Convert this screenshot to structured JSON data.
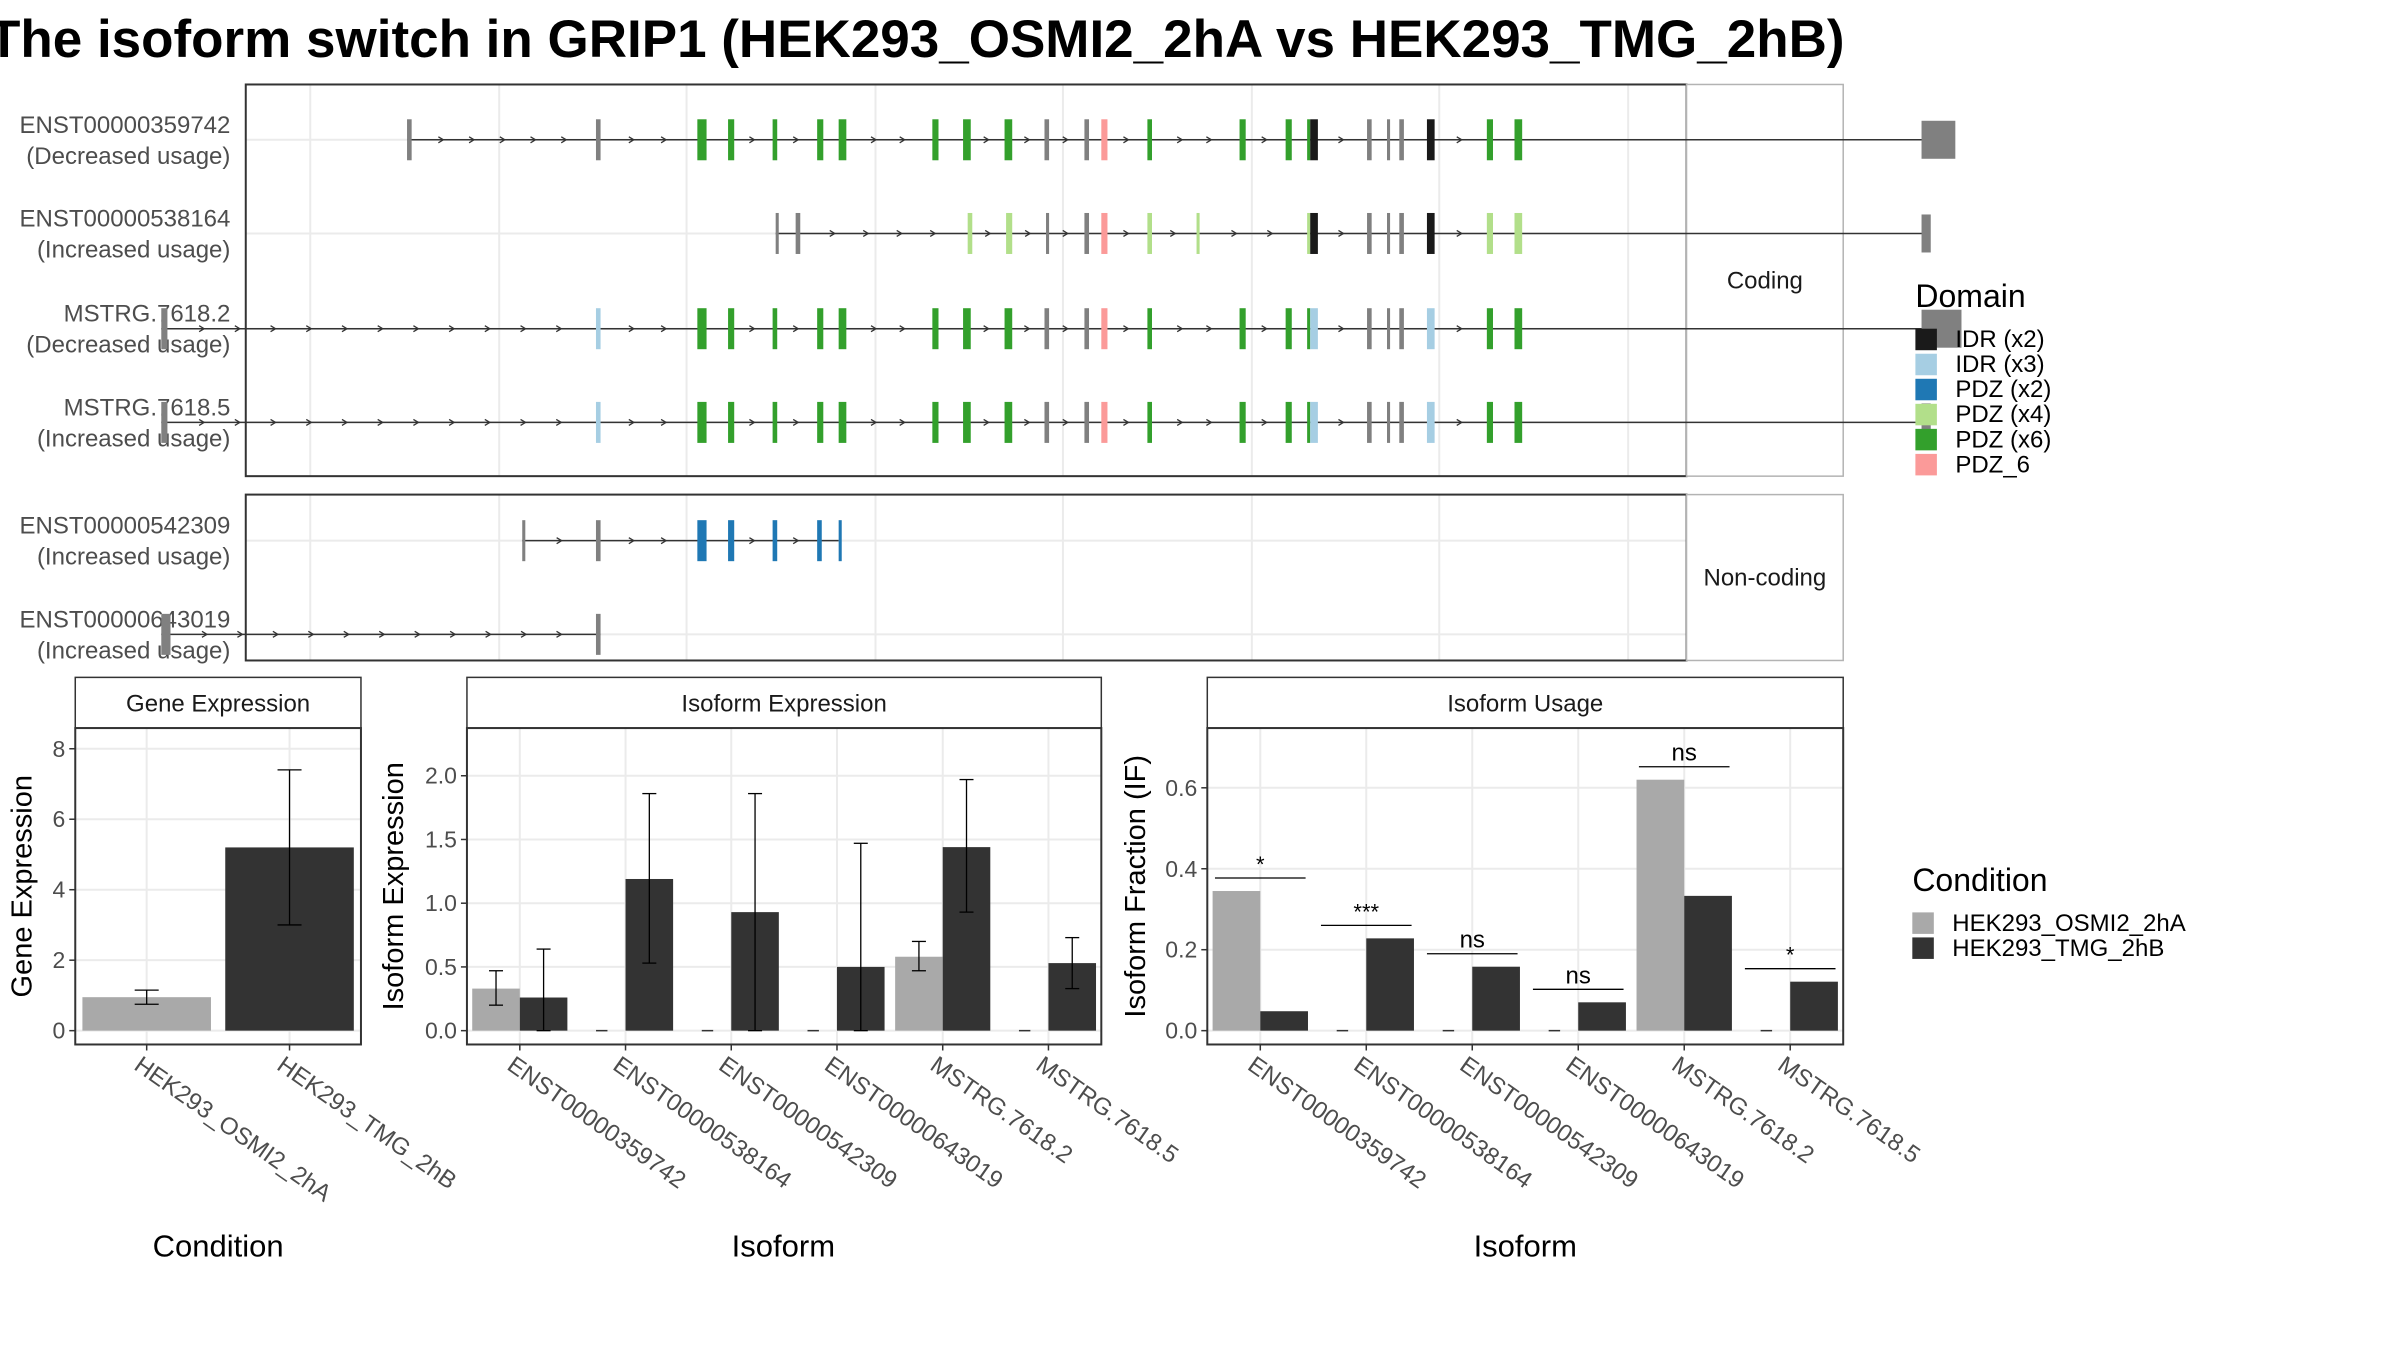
{
  "title": "The isoform switch in GRIP1 (HEK293_OSMI2_2hA vs HEK293_TMG_2hB)",
  "transcript_panel": {
    "groups": [
      {
        "label": "Coding",
        "transcripts": [
          {
            "id": "ENST00000359742",
            "note": "(Decreased usage)",
            "start": 265,
            "end": 1253,
            "utr3_end": 1273,
            "exons": [
              [
                265,
                268,
                "grey"
              ],
              [
                388,
                391,
                "grey"
              ],
              [
                454,
                460,
                "PDZ (x6)"
              ],
              [
                474,
                478,
                "PDZ (x6)"
              ],
              [
                503,
                506,
                "PDZ (x6)"
              ],
              [
                532,
                536,
                "PDZ (x6)"
              ],
              [
                546,
                551,
                "PDZ (x6)"
              ],
              [
                607,
                611,
                "PDZ (x6)"
              ],
              [
                627,
                632,
                "PDZ (x6)"
              ],
              [
                654,
                659,
                "PDZ (x6)"
              ],
              [
                680,
                683,
                "grey"
              ],
              [
                706,
                709,
                "grey"
              ],
              [
                717,
                721,
                "PDZ_6"
              ],
              [
                747,
                750,
                "PDZ (x6)"
              ],
              [
                807,
                811,
                "PDZ (x6)"
              ],
              [
                837,
                841,
                "PDZ (x6)"
              ],
              [
                851,
                853,
                "PDZ (x6)"
              ],
              [
                853,
                858,
                "IDR (x2)"
              ],
              [
                890,
                893,
                "grey"
              ],
              [
                903,
                905,
                "grey"
              ],
              [
                911,
                914,
                "grey"
              ],
              [
                929,
                934,
                "IDR (x2)"
              ],
              [
                968,
                972,
                "PDZ (x6)"
              ],
              [
                986,
                991,
                "PDZ (x6)"
              ]
            ]
          },
          {
            "id": "ENST00000538164",
            "note": "(Increased usage)",
            "start": 505,
            "end": 1253,
            "utr3_end": 1257,
            "exons": [
              [
                505,
                507,
                "grey"
              ],
              [
                518,
                521,
                "grey"
              ],
              [
                630,
                633,
                "PDZ (x4)"
              ],
              [
                655,
                659,
                "PDZ (x4)"
              ],
              [
                681,
                683,
                "grey"
              ],
              [
                706,
                709,
                "grey"
              ],
              [
                717,
                721,
                "PDZ_6"
              ],
              [
                747,
                750,
                "PDZ (x4)"
              ],
              [
                779,
                781,
                "PDZ (x4)"
              ],
              [
                851,
                853,
                "PDZ (x4)"
              ],
              [
                853,
                858,
                "IDR (x2)"
              ],
              [
                890,
                893,
                "grey"
              ],
              [
                903,
                905,
                "grey"
              ],
              [
                911,
                914,
                "grey"
              ],
              [
                929,
                934,
                "IDR (x2)"
              ],
              [
                968,
                972,
                "PDZ (x4)"
              ],
              [
                986,
                991,
                "PDZ (x4)"
              ]
            ]
          },
          {
            "id": "MSTRG.7618.2",
            "note": "(Decreased usage)",
            "start": 105,
            "end": 1253,
            "utr3_end": 1277,
            "exons": [
              [
                105,
                109,
                "grey"
              ],
              [
                388,
                391,
                "IDR (x3)"
              ],
              [
                454,
                460,
                "PDZ (x6)"
              ],
              [
                474,
                478,
                "PDZ (x6)"
              ],
              [
                503,
                506,
                "PDZ (x6)"
              ],
              [
                532,
                536,
                "PDZ (x6)"
              ],
              [
                546,
                551,
                "PDZ (x6)"
              ],
              [
                607,
                611,
                "PDZ (x6)"
              ],
              [
                627,
                632,
                "PDZ (x6)"
              ],
              [
                654,
                659,
                "PDZ (x6)"
              ],
              [
                680,
                683,
                "grey"
              ],
              [
                706,
                709,
                "grey"
              ],
              [
                717,
                721,
                "PDZ_6"
              ],
              [
                747,
                750,
                "PDZ (x6)"
              ],
              [
                807,
                811,
                "PDZ (x6)"
              ],
              [
                837,
                841,
                "PDZ (x6)"
              ],
              [
                851,
                853,
                "PDZ (x6)"
              ],
              [
                853,
                858,
                "IDR (x3)"
              ],
              [
                890,
                893,
                "grey"
              ],
              [
                903,
                905,
                "grey"
              ],
              [
                911,
                914,
                "grey"
              ],
              [
                929,
                934,
                "IDR (x3)"
              ],
              [
                968,
                972,
                "PDZ (x6)"
              ],
              [
                986,
                991,
                "PDZ (x6)"
              ]
            ]
          },
          {
            "id": "MSTRG.7618.5",
            "note": "(Increased usage)",
            "start": 105,
            "end": 1253,
            "utr3_end": 1257,
            "exons": [
              [
                105,
                109,
                "grey"
              ],
              [
                388,
                391,
                "IDR (x3)"
              ],
              [
                454,
                460,
                "PDZ (x6)"
              ],
              [
                474,
                478,
                "PDZ (x6)"
              ],
              [
                503,
                506,
                "PDZ (x6)"
              ],
              [
                532,
                536,
                "PDZ (x6)"
              ],
              [
                546,
                551,
                "PDZ (x6)"
              ],
              [
                607,
                611,
                "PDZ (x6)"
              ],
              [
                627,
                632,
                "PDZ (x6)"
              ],
              [
                654,
                659,
                "PDZ (x6)"
              ],
              [
                680,
                683,
                "grey"
              ],
              [
                706,
                709,
                "grey"
              ],
              [
                717,
                721,
                "PDZ_6"
              ],
              [
                747,
                750,
                "PDZ (x6)"
              ],
              [
                807,
                811,
                "PDZ (x6)"
              ],
              [
                837,
                841,
                "PDZ (x6)"
              ],
              [
                851,
                853,
                "PDZ (x6)"
              ],
              [
                853,
                858,
                "IDR (x3)"
              ],
              [
                890,
                893,
                "grey"
              ],
              [
                903,
                905,
                "grey"
              ],
              [
                911,
                914,
                "grey"
              ],
              [
                929,
                934,
                "IDR (x3)"
              ],
              [
                968,
                972,
                "PDZ (x6)"
              ],
              [
                986,
                991,
                "PDZ (x6)"
              ]
            ]
          }
        ]
      },
      {
        "label": "Non-coding",
        "transcripts": [
          {
            "id": "ENST00000542309",
            "note": "(Increased usage)",
            "start": 340,
            "end": 546,
            "utr3_end": null,
            "exons": [
              [
                340,
                342,
                "grey"
              ],
              [
                388,
                391,
                "grey"
              ],
              [
                454,
                460,
                "PDZ (x2)"
              ],
              [
                474,
                478,
                "PDZ (x2)"
              ],
              [
                503,
                506,
                "PDZ (x2)"
              ],
              [
                532,
                535,
                "PDZ (x2)"
              ],
              [
                546,
                548,
                "PDZ (x2)"
              ]
            ]
          },
          {
            "id": "ENST00000643019",
            "note": "(Increased usage)",
            "start": 105,
            "end": 391,
            "utr3_end": null,
            "exons": [
              [
                105,
                111,
                "grey"
              ],
              [
                388,
                391,
                "grey"
              ]
            ]
          }
        ]
      }
    ]
  },
  "domain_legend": {
    "title": "Domain",
    "items": [
      {
        "label": "IDR (x2)",
        "color": "#1a1a1a"
      },
      {
        "label": "IDR (x3)",
        "color": "#a6cee3"
      },
      {
        "label": "PDZ (x2)",
        "color": "#1f78b4"
      },
      {
        "label": "PDZ (x4)",
        "color": "#b2df8a"
      },
      {
        "label": "PDZ (x6)",
        "color": "#33a02c"
      },
      {
        "label": "PDZ_6",
        "color": "#fb9a99"
      }
    ],
    "grey_color": "#808080"
  },
  "condition_legend": {
    "title": "Condition",
    "items": [
      {
        "label": "HEK293_OSMI2_2hA",
        "color": "#a9a9a9"
      },
      {
        "label": "HEK293_TMG_2hB",
        "color": "#333333"
      }
    ]
  },
  "chart_data": [
    {
      "type": "bar",
      "panel_title": "Gene Expression",
      "xlabel": "Condition",
      "ylabel": "Gene Expression",
      "ylim": [
        0,
        8.5
      ],
      "yticks": [
        0,
        2,
        4,
        6,
        8
      ],
      "categories": [
        "HEK293_OSMI2_2hA",
        "HEK293_TMG_2hB"
      ],
      "values": [
        0.95,
        5.2
      ],
      "err_low": [
        0.75,
        3.0
      ],
      "err_high": [
        1.15,
        7.4
      ]
    },
    {
      "type": "bar",
      "panel_title": "Isoform Expression",
      "xlabel": "Isoform",
      "ylabel": "Isoform Expression",
      "ylim": [
        0,
        2.35
      ],
      "yticks": [
        0.0,
        0.5,
        1.0,
        1.5,
        2.0
      ],
      "categories": [
        "ENST00000359742",
        "ENST00000538164",
        "ENST00000542309",
        "ENST00000643019",
        "MSTRG.7618.2",
        "MSTRG.7618.5"
      ],
      "series": [
        {
          "name": "HEK293_OSMI2_2hA",
          "values": [
            0.33,
            0,
            0,
            0,
            0.58,
            0
          ],
          "err_low": [
            0.2,
            0,
            0,
            0,
            0.47,
            0
          ],
          "err_high": [
            0.47,
            0,
            0,
            0,
            0.7,
            0
          ]
        },
        {
          "name": "HEK293_TMG_2hB",
          "values": [
            0.26,
            1.19,
            0.93,
            0.5,
            1.44,
            0.53
          ],
          "err_low": [
            0,
            0.53,
            0,
            0,
            0.93,
            0.33
          ],
          "err_high": [
            0.64,
            1.86,
            1.86,
            1.47,
            1.97,
            0.73
          ]
        }
      ]
    },
    {
      "type": "bar",
      "panel_title": "Isoform Usage",
      "xlabel": "Isoform",
      "ylabel": "Isoform Fraction (IF)",
      "ylim": [
        0,
        0.74
      ],
      "yticks": [
        0.0,
        0.2,
        0.4,
        0.6
      ],
      "categories": [
        "ENST00000359742",
        "ENST00000538164",
        "ENST00000542309",
        "ENST00000643019",
        "MSTRG.7618.2",
        "MSTRG.7618.5"
      ],
      "series": [
        {
          "name": "HEK293_OSMI2_2hA",
          "values": [
            0.345,
            0,
            0,
            0,
            0.62,
            0
          ]
        },
        {
          "name": "HEK293_TMG_2hB",
          "values": [
            0.048,
            0.228,
            0.158,
            0.07,
            0.333,
            0.121
          ]
        }
      ],
      "significance": [
        "*",
        "***",
        "ns",
        "ns",
        "ns",
        "*"
      ]
    }
  ]
}
